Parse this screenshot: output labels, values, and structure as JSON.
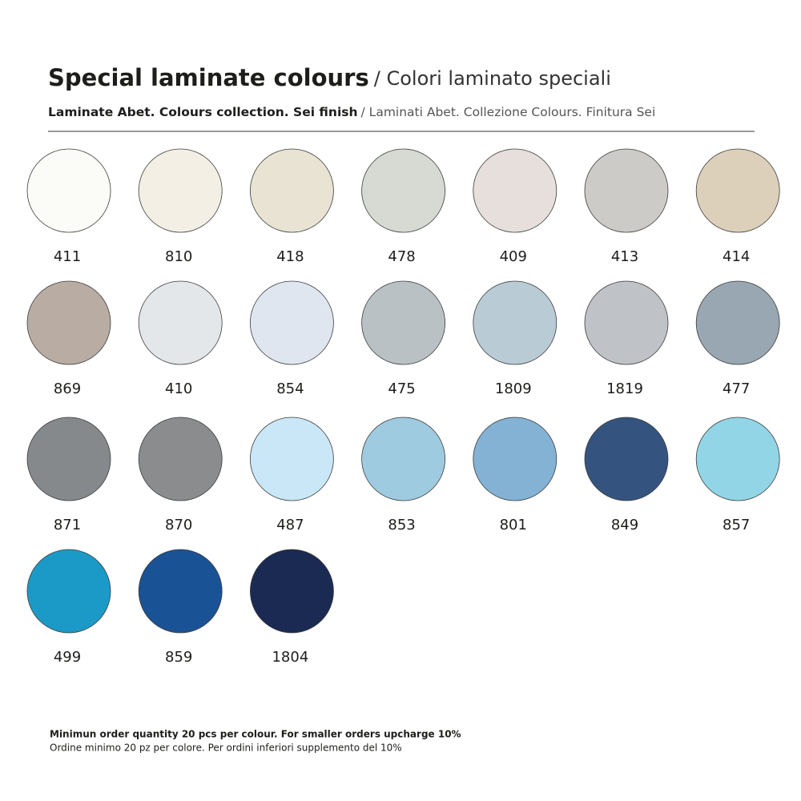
{
  "header": {
    "title": "Special laminate colours",
    "title_translation": "/ Colori laminato speciali",
    "subtitle": "Laminate Abet. Colours collection. Sei finish",
    "subtitle_translation": "/ Laminati Abet. Collezione Colours. Finitura Sei"
  },
  "swatches": [
    [
      {
        "label": "411",
        "color": "#fbfbf8"
      },
      {
        "label": "810",
        "color": "#f3efe4"
      },
      {
        "label": "418",
        "color": "#e8e3d3"
      },
      {
        "label": "478",
        "color": "#d6dad3"
      },
      {
        "label": "409",
        "color": "#e6dfdb"
      },
      {
        "label": "413",
        "color": "#cdcbc7"
      },
      {
        "label": "414",
        "color": "#dcd0bb"
      }
    ],
    [
      {
        "label": "869",
        "color": "#b9aca3"
      },
      {
        "label": "410",
        "color": "#e4e7ea"
      },
      {
        "label": "854",
        "color": "#e0e6ef"
      },
      {
        "label": "475",
        "color": "#b9c1c5"
      },
      {
        "label": "1809",
        "color": "#b9ccd6"
      },
      {
        "label": "1819",
        "color": "#bfc2c6"
      },
      {
        "label": "477",
        "color": "#98a7b1"
      }
    ],
    [
      {
        "label": "871",
        "color": "#85898c"
      },
      {
        "label": "870",
        "color": "#8a8c8d"
      },
      {
        "label": "487",
        "color": "#c9e7f7"
      },
      {
        "label": "853",
        "color": "#9fcbe1"
      },
      {
        "label": "801",
        "color": "#84b2d5"
      },
      {
        "label": "849",
        "color": "#34547f"
      },
      {
        "label": "857",
        "color": "#92d5e6"
      }
    ],
    [
      {
        "label": "499",
        "color": "#1c9ac7"
      },
      {
        "label": "859",
        "color": "#1a5296"
      },
      {
        "label": "1804",
        "color": "#1a2a52"
      }
    ]
  ],
  "footer": {
    "note": "Minimun order quantity 20 pcs per colour. For smaller orders upcharge 10%",
    "note_translation": "Ordine minimo 20 pz per colore. Per ordini inferiori supplemento del 10%"
  }
}
